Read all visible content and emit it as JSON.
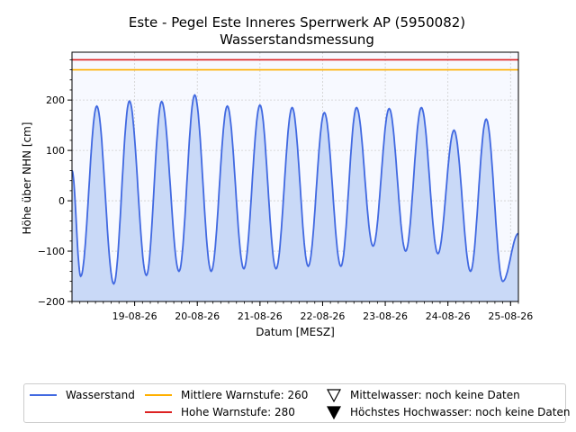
{
  "chart_data": {
    "type": "line",
    "title": "Este - Pegel Este Inneres Sperrwerk AP (5950082)",
    "subtitle": "Wasserstandsmessung",
    "xlabel": "Datum [MESZ]",
    "ylabel": "Höhe über NHN [cm]",
    "ylim": [
      -200,
      295
    ],
    "yticks": [
      -200,
      -100,
      0,
      100,
      200
    ],
    "xlim": [
      "2026-08-18T00:00",
      "2026-08-25T03:00"
    ],
    "xticks": [
      {
        "value": "2026-08-19T00:00",
        "label": "19-08-26"
      },
      {
        "value": "2026-08-20T00:00",
        "label": "20-08-26"
      },
      {
        "value": "2026-08-21T00:00",
        "label": "21-08-26"
      },
      {
        "value": "2026-08-22T00:00",
        "label": "22-08-26"
      },
      {
        "value": "2026-08-23T00:00",
        "label": "23-08-26"
      },
      {
        "value": "2026-08-24T00:00",
        "label": "24-08-26"
      },
      {
        "value": "2026-08-25T00:00",
        "label": "25-08-26"
      }
    ],
    "grid": true,
    "legend_position": "bottom",
    "series": [
      {
        "name": "Wasserstand",
        "color": "#4169e1",
        "fill": "#c9d9f7",
        "x": [
          "2026-08-18T00:00",
          "2026-08-18T03:20",
          "2026-08-18T09:30",
          "2026-08-18T16:00",
          "2026-08-18T22:00",
          "2026-08-19T04:30",
          "2026-08-19T10:20",
          "2026-08-19T17:00",
          "2026-08-19T23:00",
          "2026-08-20T05:20",
          "2026-08-20T11:30",
          "2026-08-20T17:50",
          "2026-08-21T00:00",
          "2026-08-21T06:10",
          "2026-08-21T12:20",
          "2026-08-21T18:30",
          "2026-08-22T00:40",
          "2026-08-22T07:00",
          "2026-08-22T13:00",
          "2026-08-22T19:20",
          "2026-08-23T01:30",
          "2026-08-23T07:50",
          "2026-08-23T13:50",
          "2026-08-23T20:10",
          "2026-08-24T02:20",
          "2026-08-24T08:40",
          "2026-08-24T14:40",
          "2026-08-24T21:00",
          "2026-08-25T03:00"
        ],
        "values": [
          60,
          -150,
          188,
          -165,
          198,
          -148,
          197,
          -140,
          210,
          -140,
          188,
          -135,
          190,
          -135,
          185,
          -130,
          175,
          -130,
          185,
          -90,
          183,
          -100,
          185,
          -105,
          140,
          -140,
          162,
          -160,
          -65
        ]
      }
    ],
    "reference_lines": [
      {
        "name": "Mittlere Warnstufe: 260",
        "value": 260,
        "color": "#ffb000"
      },
      {
        "name": "Hohe Warnstufe: 280",
        "value": 280,
        "color": "#dd2222"
      }
    ],
    "marker_entries": [
      {
        "name": "Mittelwasser: noch keine Daten",
        "marker": "triangle-down-open"
      },
      {
        "name": "Höchstes Hochwasser: noch keine Daten",
        "marker": "triangle-down-filled"
      }
    ]
  }
}
